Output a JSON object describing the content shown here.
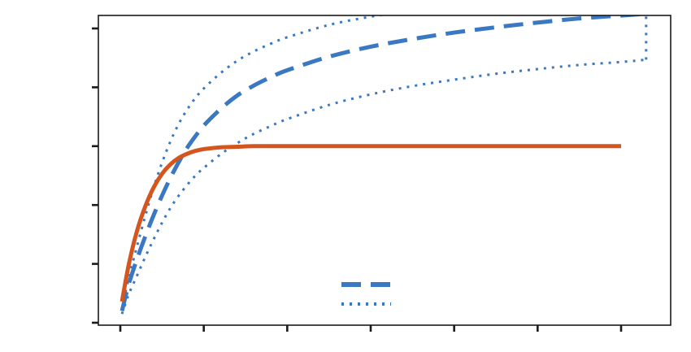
{
  "chart_data": {
    "type": "line",
    "title": "",
    "xlabel": "",
    "ylabel": "",
    "xlim": [
      -0.03,
      6.75
    ],
    "ylim": [
      -0.02,
      5.3
    ],
    "x_ticks": [
      0,
      1,
      2,
      3,
      4,
      5,
      6
    ],
    "y_ticks": [
      0,
      1,
      2,
      3,
      4,
      5
    ],
    "x_tick_labels_shown": false,
    "y_tick_labels_shown": false,
    "grid": false,
    "legend": {
      "placement": "lower-center",
      "entries": [
        {
          "series_index": 0,
          "label": ""
        },
        {
          "series_index": 2,
          "label": ""
        }
      ]
    },
    "series": [
      {
        "color": "#3a78c2",
        "style": "dashed",
        "x": [
          0.02,
          0.1,
          0.2,
          0.3,
          0.4,
          0.5,
          0.6,
          0.7,
          0.8,
          0.9,
          1.0,
          1.2,
          1.4,
          1.6,
          1.8,
          2.0,
          2.5,
          3.0,
          3.5,
          4.0,
          4.5,
          5.0,
          5.5,
          6.0,
          6.3
        ],
        "y": [
          0.2,
          0.65,
          1.08,
          1.47,
          1.83,
          2.16,
          2.46,
          2.73,
          2.97,
          3.17,
          3.35,
          3.63,
          3.86,
          4.03,
          4.17,
          4.29,
          4.52,
          4.69,
          4.82,
          4.93,
          5.02,
          5.1,
          5.17,
          5.22,
          5.25
        ]
      },
      {
        "color": "#3a78c2",
        "style": "dotted",
        "x": [
          0.02,
          0.1,
          0.2,
          0.3,
          0.4,
          0.5,
          0.6,
          0.7,
          0.8,
          0.9,
          1.0,
          1.2,
          1.4,
          1.6,
          1.8,
          2.0,
          2.5,
          3.0,
          3.5,
          4.0,
          4.5,
          5.0,
          5.5,
          6.0,
          6.3
        ],
        "y": [
          0.25,
          0.75,
          1.3,
          1.82,
          2.3,
          2.72,
          3.08,
          3.38,
          3.62,
          3.82,
          3.98,
          4.24,
          4.45,
          4.61,
          4.74,
          4.85,
          5.06,
          5.2,
          5.3,
          5.38,
          5.44,
          5.49,
          5.53,
          5.56,
          5.57
        ]
      },
      {
        "color": "#3a78c2",
        "style": "dotted",
        "x": [
          0.02,
          0.1,
          0.2,
          0.3,
          0.4,
          0.5,
          0.6,
          0.7,
          0.8,
          0.9,
          1.0,
          1.2,
          1.4,
          1.6,
          1.8,
          2.0,
          2.5,
          3.0,
          3.5,
          4.0,
          4.5,
          5.0,
          5.5,
          6.0,
          6.3
        ],
        "y": [
          0.15,
          0.48,
          0.8,
          1.12,
          1.42,
          1.7,
          1.95,
          2.16,
          2.34,
          2.5,
          2.63,
          2.86,
          3.05,
          3.21,
          3.34,
          3.46,
          3.7,
          3.88,
          4.02,
          4.13,
          4.23,
          4.31,
          4.38,
          4.43,
          4.47
        ]
      },
      {
        "color": "#3a78c2",
        "style": "dotted",
        "x": [
          6.3,
          6.3
        ],
        "y": [
          4.47,
          5.57
        ]
      },
      {
        "color": "#d4561e",
        "style": "solid",
        "x": [
          0.02,
          0.1,
          0.2,
          0.3,
          0.4,
          0.5,
          0.6,
          0.7,
          0.8,
          0.9,
          1.0,
          1.2,
          1.4,
          1.6,
          1.8,
          2.0,
          2.5,
          3.0,
          3.5,
          4.0,
          4.5,
          5.0,
          5.5,
          6.0
        ],
        "y": [
          0.36,
          0.98,
          1.56,
          1.98,
          2.3,
          2.53,
          2.69,
          2.8,
          2.87,
          2.92,
          2.95,
          2.98,
          2.99,
          3.0,
          3.0,
          3.0,
          3.0,
          3.0,
          3.0,
          3.0,
          3.0,
          3.0,
          3.0,
          3.0
        ]
      }
    ]
  }
}
